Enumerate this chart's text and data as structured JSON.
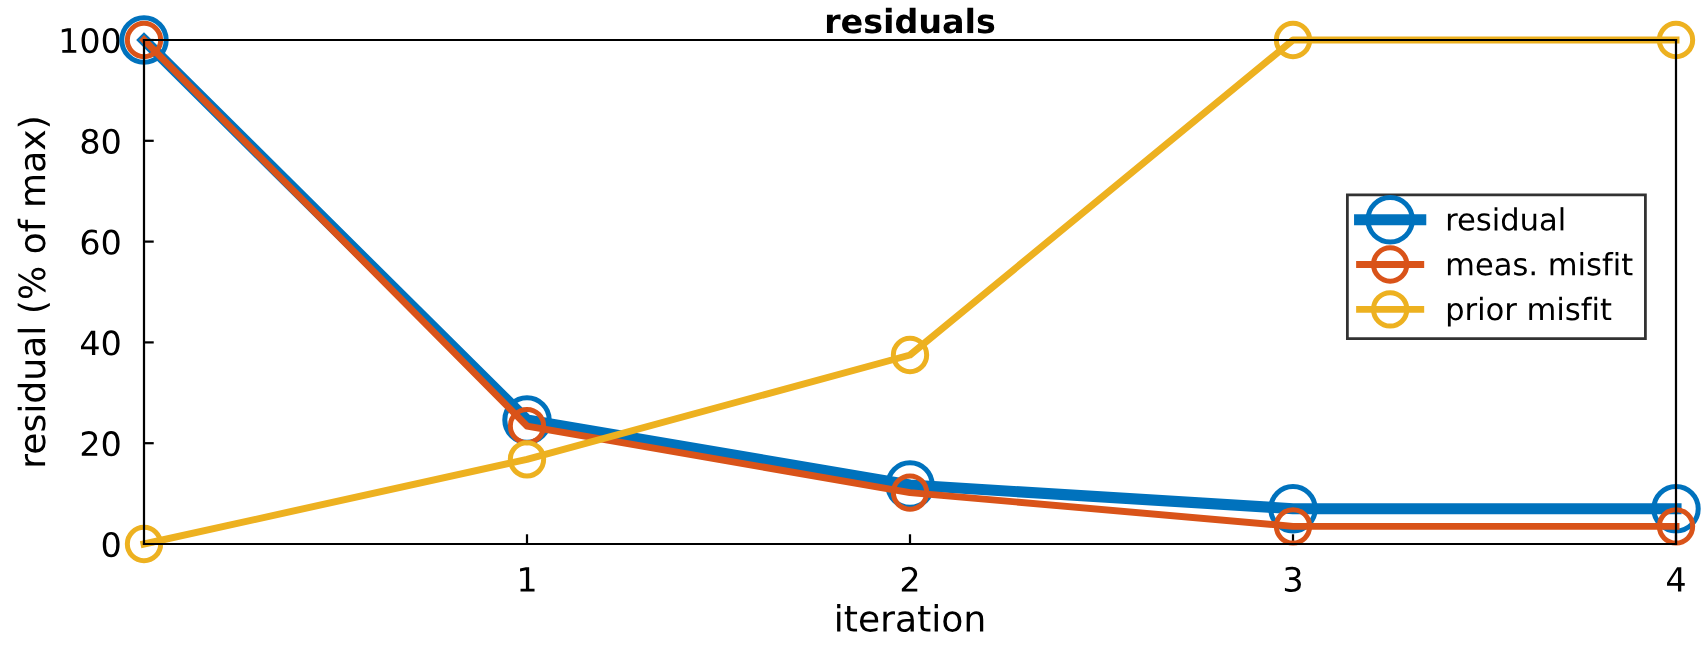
{
  "chart_data": {
    "type": "line",
    "title": "residuals",
    "xlabel": "iteration",
    "ylabel": "residual (% of max)",
    "x": [
      0,
      1,
      2,
      3,
      4
    ],
    "series": [
      {
        "name": "residual",
        "color": "#0072bd",
        "values": [
          100,
          24.6,
          11.7,
          7.0,
          7.0
        ]
      },
      {
        "name": "meas. misfit",
        "color": "#d95319",
        "values": [
          100,
          23.4,
          10.2,
          3.5,
          3.5
        ]
      },
      {
        "name": "prior misfit",
        "color": "#edb120",
        "values": [
          0,
          16.8,
          37.5,
          100,
          100
        ]
      }
    ],
    "xlim": [
      0,
      4
    ],
    "xticks": [
      1,
      2,
      3,
      4
    ],
    "ylim": [
      0,
      100
    ],
    "yticks": [
      0,
      20,
      40,
      60,
      80,
      100
    ],
    "marker": "circle",
    "line_style": "solid",
    "legend": "right",
    "grid": false
  }
}
